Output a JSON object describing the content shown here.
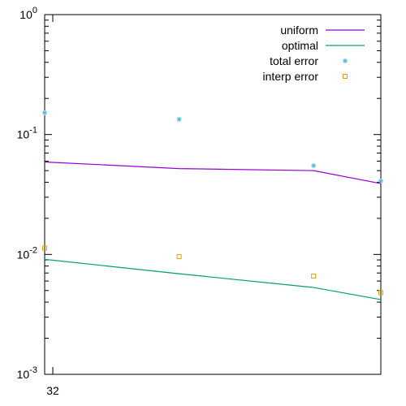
{
  "chart_data": {
    "type": "line",
    "xscale": "log",
    "yscale": "log",
    "xlim": [
      32,
      1024
    ],
    "ylim": [
      0.001,
      1
    ],
    "xticks": [
      {
        "value": 32,
        "label": "32"
      }
    ],
    "yticks": [
      {
        "value": 1,
        "base": "10",
        "exp": "0"
      },
      {
        "value": 0.1,
        "base": "10",
        "exp": "-1"
      },
      {
        "value": 0.01,
        "base": "10",
        "exp": "-2"
      },
      {
        "value": 0.001,
        "base": "10",
        "exp": "-3"
      }
    ],
    "legend_position": "top-right",
    "grid": false,
    "series": [
      {
        "name": "uniform",
        "style": "line",
        "color": "#9400d3",
        "x": [
          32,
          128,
          512,
          1024
        ],
        "y": [
          0.059,
          0.052,
          0.05,
          0.039
        ]
      },
      {
        "name": "optimal",
        "style": "line",
        "color": "#009e73",
        "x": [
          32,
          128,
          512,
          1024
        ],
        "y": [
          0.0091,
          0.0069,
          0.0053,
          0.0042
        ]
      },
      {
        "name": "total error",
        "style": "star",
        "color": "#56b4e9",
        "x": [
          32,
          128,
          512,
          1024
        ],
        "y": [
          0.152,
          0.134,
          0.055,
          0.041
        ]
      },
      {
        "name": "interp error",
        "style": "square",
        "color": "#e69f00",
        "x": [
          32,
          128,
          512,
          1024
        ],
        "y": [
          0.0113,
          0.0096,
          0.0066,
          0.0048
        ]
      }
    ]
  }
}
